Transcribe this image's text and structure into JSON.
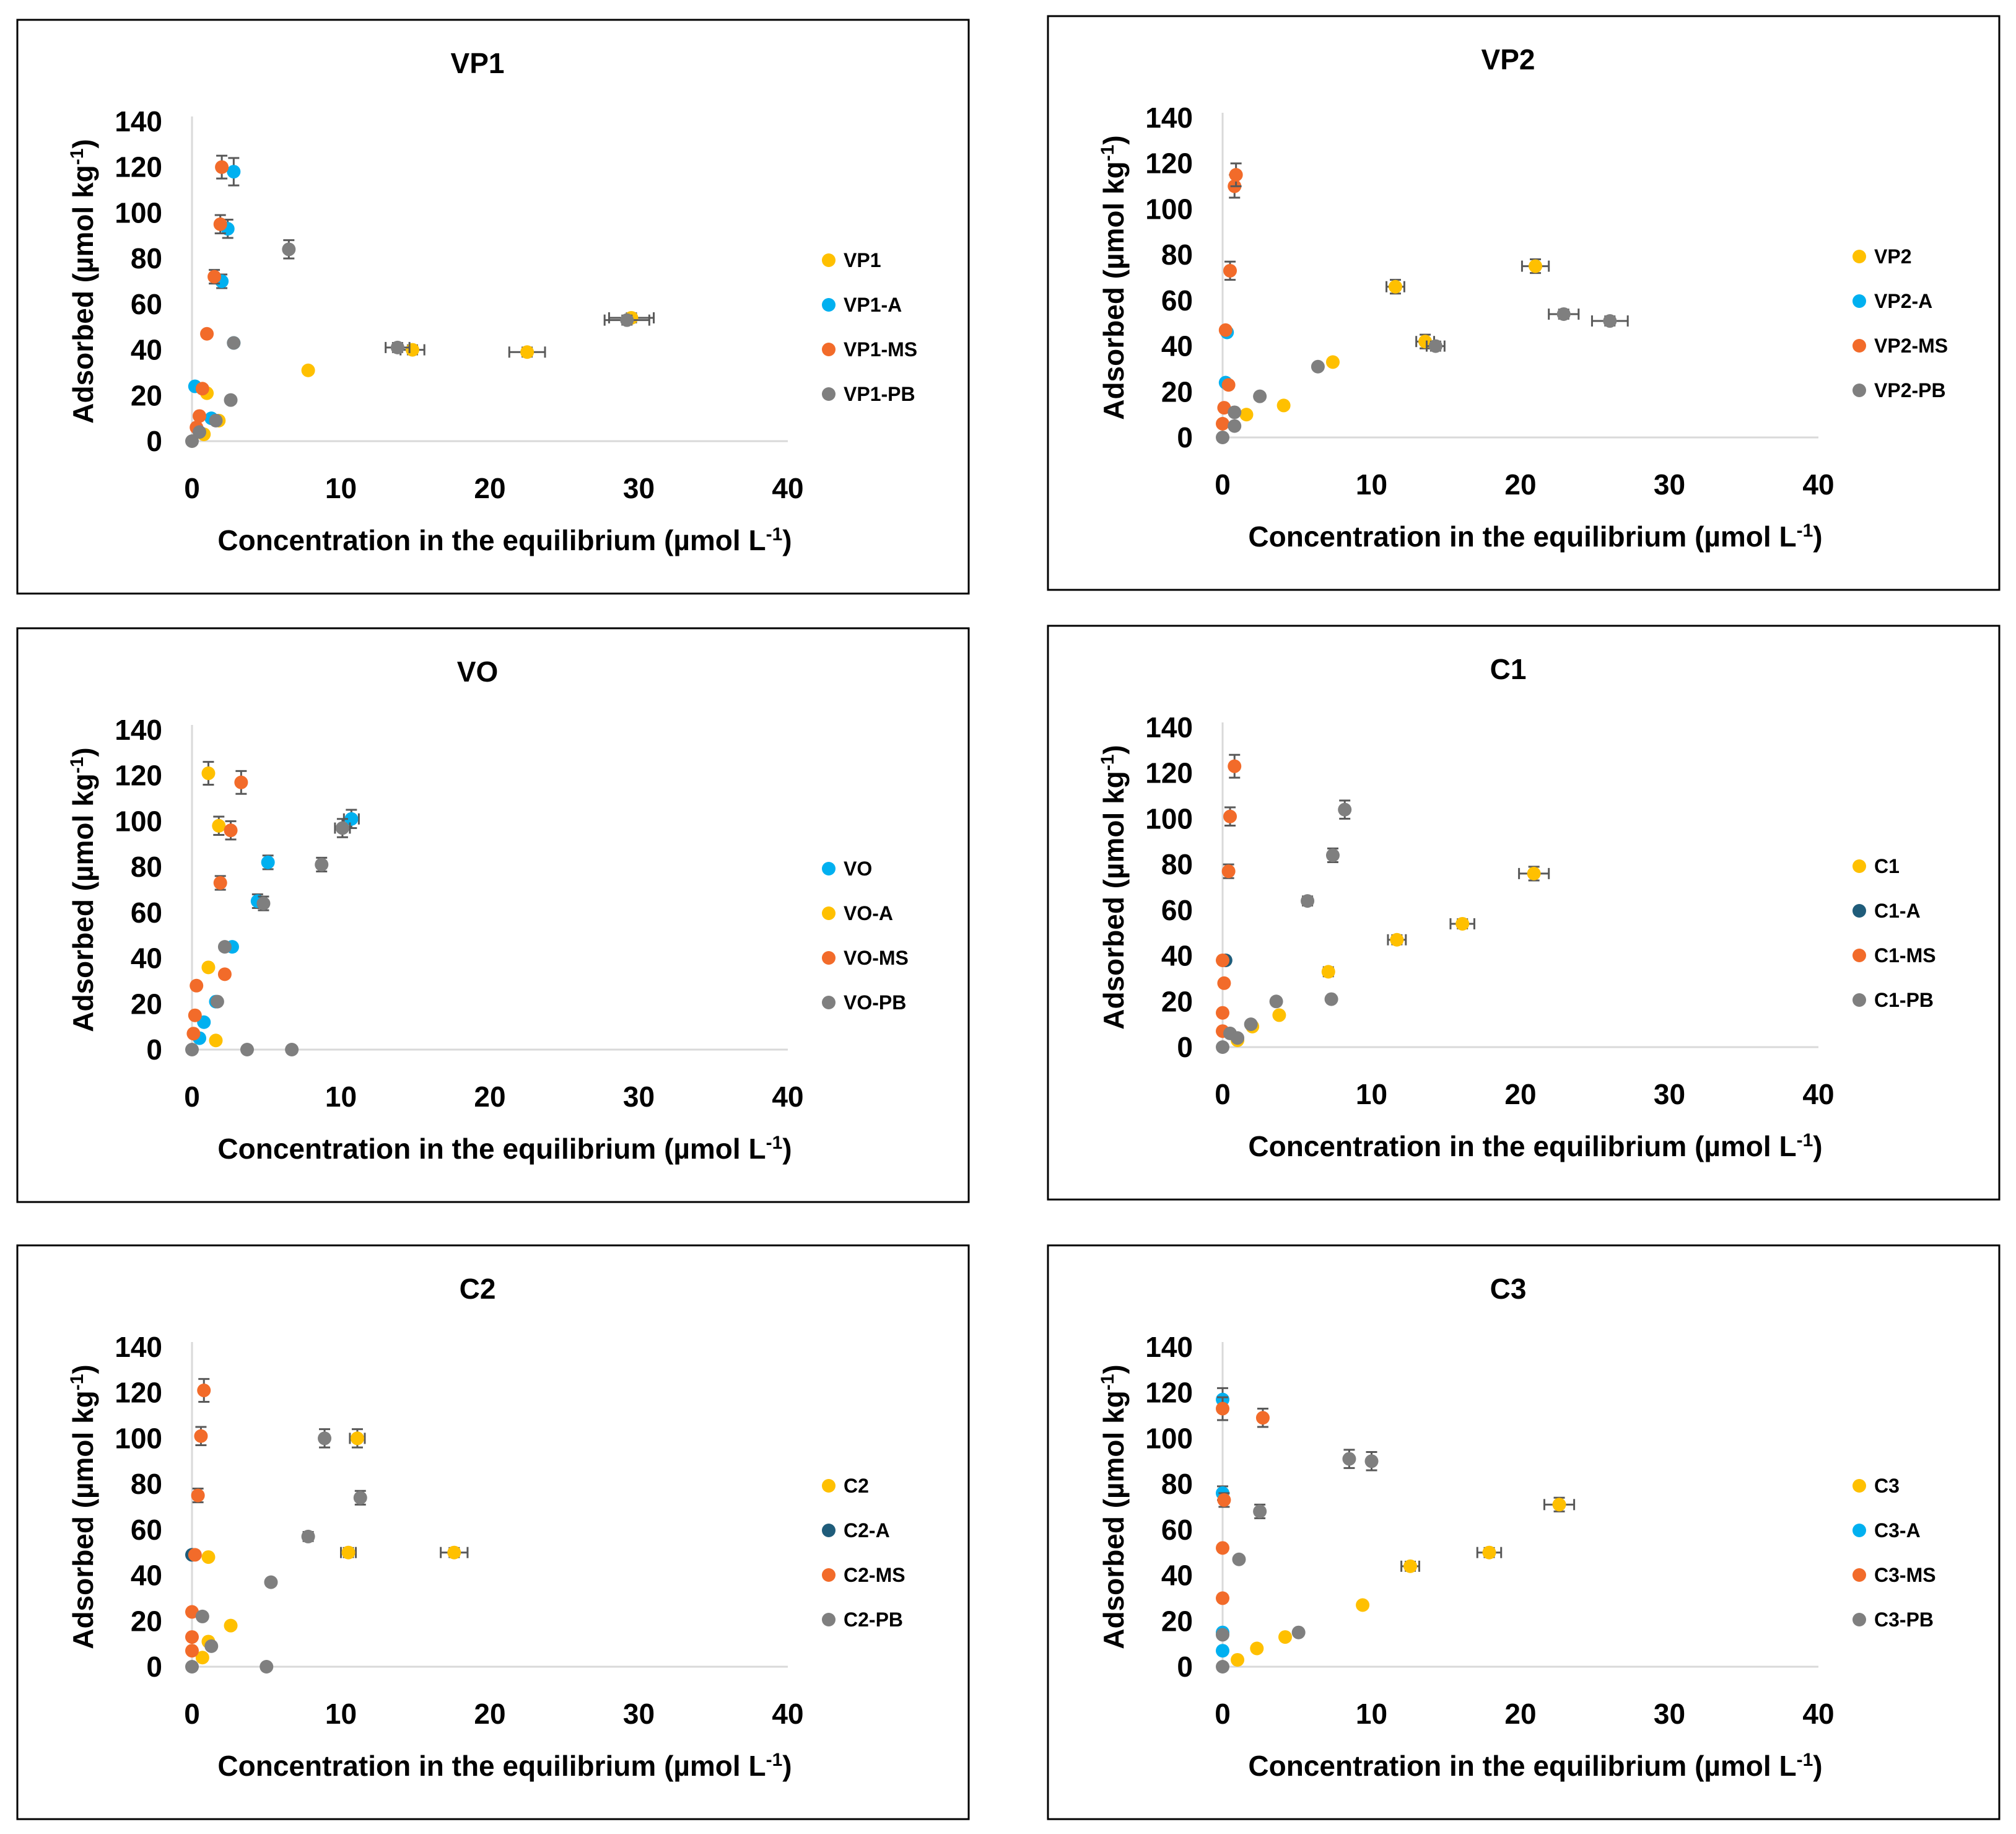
{
  "colors": {
    "yellow": "#FFC000",
    "lightblue": "#00B0F0",
    "darkteal": "#1F5C7A",
    "orange": "#F26B2A",
    "gray": "#7F7F7F",
    "axis": "#D9D9D9",
    "text": "#000000",
    "frame": "#000000"
  },
  "shared_labels": {
    "xlabel_main": "Concentration  in the equilibrium (µmol L",
    "xlabel_sup": "-1",
    "xlabel_tail": ")",
    "ylabel_main": "Adsorbed (µmol kg",
    "ylabel_sup": "-1",
    "ylabel_tail": ")"
  },
  "chart_data": [
    {
      "type": "scatter",
      "title": "VP1",
      "xlim": [
        0,
        40
      ],
      "ylim": [
        0,
        140
      ],
      "xticks": [
        0,
        10,
        20,
        30,
        40
      ],
      "yticks": [
        0,
        20,
        40,
        60,
        80,
        100,
        120,
        140
      ],
      "series": [
        {
          "name": "VP1",
          "color": "#FFC000",
          "points": [
            [
              0.8,
              3,
              0,
              0
            ],
            [
              1,
              21,
              0,
              0
            ],
            [
              1.8,
              9,
              0,
              0
            ],
            [
              7.8,
              31,
              0,
              0
            ],
            [
              14.8,
              40,
              0.8,
              2
            ],
            [
              22.5,
              39,
              1.2,
              2
            ],
            [
              29.5,
              54,
              1.5,
              2
            ]
          ]
        },
        {
          "name": "VP1-A",
          "color": "#00B0F0",
          "points": [
            [
              0.2,
              24,
              0,
              0
            ],
            [
              1.3,
              10,
              0,
              0
            ],
            [
              2,
              70,
              0,
              3
            ],
            [
              2.4,
              93,
              0,
              4
            ],
            [
              2.8,
              118,
              0,
              6
            ],
            [
              2.8,
              43,
              0,
              0
            ]
          ]
        },
        {
          "name": "VP1-MS",
          "color": "#F26B2A",
          "points": [
            [
              0.3,
              6,
              0,
              0
            ],
            [
              0.5,
              11,
              0,
              0
            ],
            [
              0.7,
              23,
              0,
              0
            ],
            [
              1,
              47,
              0,
              0
            ],
            [
              1.5,
              72,
              0,
              3
            ],
            [
              1.9,
              95,
              0,
              4
            ],
            [
              2,
              120,
              0,
              5
            ]
          ]
        },
        {
          "name": "VP1-PB",
          "color": "#7F7F7F",
          "points": [
            [
              0,
              0,
              0,
              0
            ],
            [
              0.5,
              4,
              0,
              0
            ],
            [
              1.6,
              9,
              0,
              0
            ],
            [
              2.6,
              18,
              0,
              0
            ],
            [
              2.8,
              43,
              0,
              0
            ],
            [
              6.5,
              84,
              0,
              4
            ],
            [
              13.8,
              41,
              0.8,
              2
            ],
            [
              29.2,
              53,
              1.5,
              2
            ]
          ]
        }
      ]
    },
    {
      "type": "scatter",
      "title": "VP2",
      "xlim": [
        0,
        40
      ],
      "ylim": [
        0,
        140
      ],
      "xticks": [
        0,
        10,
        20,
        30,
        40
      ],
      "yticks": [
        0,
        20,
        40,
        60,
        80,
        100,
        120,
        140
      ],
      "series": [
        {
          "name": "VP2",
          "color": "#FFC000",
          "points": [
            [
              1.6,
              10,
              0,
              0
            ],
            [
              4.1,
              14,
              0,
              0
            ],
            [
              7.4,
              33,
              0,
              0
            ],
            [
              11.6,
              66,
              0.6,
              3
            ],
            [
              13.6,
              42,
              0.6,
              3
            ],
            [
              21,
              75,
              0.9,
              3
            ]
          ]
        },
        {
          "name": "VP2-A",
          "color": "#00B0F0",
          "points": [
            [
              0.2,
              24,
              0,
              0
            ],
            [
              0.3,
              46,
              0,
              0
            ]
          ]
        },
        {
          "name": "VP2-MS",
          "color": "#F26B2A",
          "points": [
            [
              0,
              6,
              0,
              0
            ],
            [
              0.1,
              13,
              0,
              0
            ],
            [
              0.2,
              47,
              0,
              0
            ],
            [
              0.4,
              23,
              0,
              0
            ],
            [
              0.5,
              73,
              0,
              4
            ],
            [
              0.8,
              110,
              0,
              5
            ],
            [
              0.9,
              115,
              0,
              5
            ]
          ]
        },
        {
          "name": "VP2-PB",
          "color": "#7F7F7F",
          "points": [
            [
              0,
              0,
              0,
              0
            ],
            [
              0.8,
              5,
              0,
              0
            ],
            [
              0.8,
              11,
              0,
              0
            ],
            [
              2.5,
              18,
              0,
              0
            ],
            [
              6.4,
              31,
              0,
              0
            ],
            [
              14.3,
              40,
              0.6,
              2
            ],
            [
              22.9,
              54,
              1,
              2
            ],
            [
              26,
              51,
              1.2,
              2
            ]
          ]
        }
      ]
    },
    {
      "type": "scatter",
      "title": "VO",
      "xlim": [
        0,
        40
      ],
      "ylim": [
        0,
        140
      ],
      "xticks": [
        0,
        10,
        20,
        30,
        40
      ],
      "yticks": [
        0,
        20,
        40,
        60,
        80,
        100,
        120,
        140
      ],
      "series": [
        {
          "name": "VO",
          "color": "#00B0F0",
          "points": [
            [
              0.5,
              5,
              0,
              0
            ],
            [
              0.8,
              12,
              0,
              0
            ],
            [
              1.6,
              21,
              0,
              0
            ],
            [
              2.7,
              45,
              0,
              0
            ],
            [
              4.4,
              65,
              0,
              3
            ],
            [
              5.1,
              82,
              0,
              3
            ],
            [
              10.7,
              101,
              0.5,
              4
            ]
          ]
        },
        {
          "name": "VO-A",
          "color": "#FFC000",
          "points": [
            [
              1.1,
              121,
              0,
              5
            ],
            [
              1.1,
              36,
              0,
              0
            ],
            [
              1.6,
              4,
              0,
              0
            ],
            [
              1.8,
              98,
              0,
              4
            ]
          ]
        },
        {
          "name": "VO-MS",
          "color": "#F26B2A",
          "points": [
            [
              0.1,
              7,
              0,
              0
            ],
            [
              0.2,
              15,
              0,
              0
            ],
            [
              0.3,
              28,
              0,
              0
            ],
            [
              1.9,
              73,
              0,
              3
            ],
            [
              2.2,
              33,
              0,
              0
            ],
            [
              2.6,
              96,
              0,
              4
            ],
            [
              3.3,
              117,
              0,
              5
            ]
          ]
        },
        {
          "name": "VO-PB",
          "color": "#7F7F7F",
          "points": [
            [
              0,
              0,
              0,
              0
            ],
            [
              1.7,
              21,
              0,
              0
            ],
            [
              2.2,
              45,
              0,
              0
            ],
            [
              3.7,
              0,
              0,
              0
            ],
            [
              4.8,
              64,
              0,
              3
            ],
            [
              6.7,
              0,
              0,
              0
            ],
            [
              8.7,
              81,
              0,
              3
            ],
            [
              10.1,
              97,
              0.5,
              4
            ]
          ]
        }
      ]
    },
    {
      "type": "scatter",
      "title": "C1",
      "xlim": [
        0,
        40
      ],
      "ylim": [
        0,
        140
      ],
      "xticks": [
        0,
        10,
        20,
        30,
        40
      ],
      "yticks": [
        0,
        20,
        40,
        60,
        80,
        100,
        120,
        140
      ],
      "series": [
        {
          "name": "C1",
          "color": "#FFC000",
          "points": [
            [
              1,
              3,
              0,
              0
            ],
            [
              2,
              9,
              0,
              0
            ],
            [
              3.8,
              14,
              0,
              0
            ],
            [
              7.1,
              33,
              0,
              2
            ],
            [
              11.7,
              47,
              0.6,
              2
            ],
            [
              16.1,
              54,
              0.8,
              2
            ],
            [
              20.9,
              76,
              1,
              3
            ]
          ]
        },
        {
          "name": "C1-A",
          "color": "#1F5C7A",
          "points": [
            [
              0.2,
              38,
              0,
              0
            ]
          ]
        },
        {
          "name": "C1-MS",
          "color": "#F26B2A",
          "points": [
            [
              0,
              7,
              0,
              0
            ],
            [
              0,
              15,
              0,
              0
            ],
            [
              0.1,
              28,
              0,
              0
            ],
            [
              0,
              38,
              0,
              0
            ],
            [
              0.4,
              77,
              0,
              3
            ],
            [
              0.5,
              101,
              0,
              4
            ],
            [
              0.8,
              123,
              0,
              5
            ]
          ]
        },
        {
          "name": "C1-PB",
          "color": "#7F7F7F",
          "points": [
            [
              0,
              0,
              0,
              0
            ],
            [
              0.5,
              6,
              0,
              0
            ],
            [
              1,
              4,
              0,
              0
            ],
            [
              1.9,
              10,
              0,
              0
            ],
            [
              3.6,
              20,
              0,
              0
            ],
            [
              5.7,
              64,
              0,
              2
            ],
            [
              7.3,
              21,
              0,
              0
            ],
            [
              7.4,
              84,
              0,
              3
            ],
            [
              8.2,
              104,
              0,
              4
            ]
          ]
        }
      ]
    },
    {
      "type": "scatter",
      "title": "C2",
      "xlim": [
        0,
        40
      ],
      "ylim": [
        0,
        140
      ],
      "xticks": [
        0,
        10,
        20,
        30,
        40
      ],
      "yticks": [
        0,
        20,
        40,
        60,
        80,
        100,
        120,
        140
      ],
      "series": [
        {
          "name": "C2",
          "color": "#FFC000",
          "points": [
            [
              0.7,
              4,
              0,
              0
            ],
            [
              1.1,
              11,
              0,
              0
            ],
            [
              1.1,
              48,
              0,
              0
            ],
            [
              2.6,
              18,
              0,
              0
            ],
            [
              10.5,
              50,
              0.5,
              2
            ],
            [
              11.1,
              100,
              0.5,
              4
            ],
            [
              17.6,
              50,
              0.9,
              2
            ]
          ]
        },
        {
          "name": "C2-A",
          "color": "#1F5C7A",
          "points": [
            [
              0,
              49,
              0,
              0
            ]
          ]
        },
        {
          "name": "C2-MS",
          "color": "#F26B2A",
          "points": [
            [
              0,
              7,
              0,
              0
            ],
            [
              0,
              13,
              0,
              0
            ],
            [
              0,
              24,
              0,
              0
            ],
            [
              0.2,
              49,
              0,
              0
            ],
            [
              0.4,
              75,
              0,
              3
            ],
            [
              0.6,
              101,
              0,
              4
            ],
            [
              0.8,
              121,
              0,
              5
            ]
          ]
        },
        {
          "name": "C2-PB",
          "color": "#7F7F7F",
          "points": [
            [
              0,
              0,
              0,
              0
            ],
            [
              0.7,
              22,
              0,
              0
            ],
            [
              1.3,
              9,
              0,
              0
            ],
            [
              5,
              0,
              0,
              0
            ],
            [
              5.3,
              37,
              0,
              0
            ],
            [
              7.8,
              57,
              0,
              2
            ],
            [
              8.9,
              100,
              0,
              4
            ],
            [
              11.3,
              74,
              0,
              3
            ]
          ]
        }
      ]
    },
    {
      "type": "scatter",
      "title": "C3",
      "xlim": [
        0,
        40
      ],
      "ylim": [
        0,
        140
      ],
      "xticks": [
        0,
        10,
        20,
        30,
        40
      ],
      "yticks": [
        0,
        20,
        40,
        60,
        80,
        100,
        120,
        140
      ],
      "series": [
        {
          "name": "C3",
          "color": "#FFC000",
          "points": [
            [
              1,
              3,
              0,
              0
            ],
            [
              2.3,
              8,
              0,
              0
            ],
            [
              4.2,
              13,
              0,
              0
            ],
            [
              9.4,
              27,
              0,
              0
            ],
            [
              12.6,
              44,
              0.6,
              2
            ],
            [
              17.9,
              50,
              0.8,
              2
            ],
            [
              22.6,
              71,
              1,
              3
            ]
          ]
        },
        {
          "name": "C3-A",
          "color": "#00B0F0",
          "points": [
            [
              0,
              7,
              0,
              0
            ],
            [
              0,
              15,
              0,
              0
            ],
            [
              0,
              76,
              0,
              3
            ],
            [
              0,
              117,
              0,
              5
            ]
          ]
        },
        {
          "name": "C3-MS",
          "color": "#F26B2A",
          "points": [
            [
              0,
              30,
              0,
              0
            ],
            [
              0,
              52,
              0,
              0
            ],
            [
              0.1,
              73,
              0,
              3
            ],
            [
              0,
              113,
              0,
              5
            ],
            [
              2.7,
              109,
              0,
              4
            ]
          ]
        },
        {
          "name": "C3-PB",
          "color": "#7F7F7F",
          "points": [
            [
              0,
              0,
              0,
              0
            ],
            [
              0,
              14,
              0,
              0
            ],
            [
              1.1,
              47,
              0,
              0
            ],
            [
              2.5,
              68,
              0,
              3
            ],
            [
              5.1,
              15,
              0,
              0
            ],
            [
              8.5,
              91,
              0,
              4
            ],
            [
              10,
              90,
              0,
              4
            ]
          ]
        }
      ]
    }
  ]
}
